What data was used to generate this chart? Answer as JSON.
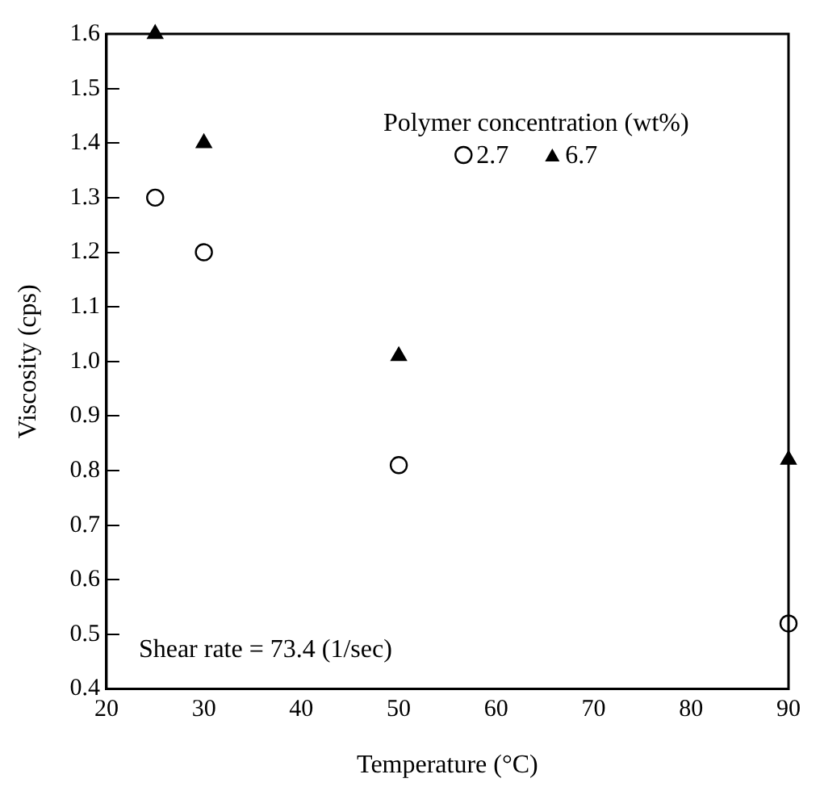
{
  "chart_data": {
    "type": "scatter",
    "xlabel": "Temperature (°C)",
    "ylabel": "Viscosity (cps)",
    "legend_title": "Polymer concentration (wt%)",
    "legend": "top right",
    "grid": false,
    "xlim": [
      20,
      90
    ],
    "xticks": [
      20,
      30,
      40,
      50,
      60,
      70,
      80,
      90
    ],
    "ylim": [
      0.4,
      1.6
    ],
    "yticks": [
      0.4,
      0.5,
      0.6,
      0.7,
      0.8,
      0.9,
      {
        "value": 1,
        "label": "1.0"
      },
      1.1,
      1.2,
      1.3,
      1.4,
      1.5,
      1.6
    ],
    "annotations": [
      "Shear rate = 73.4 (1/sec)"
    ],
    "series": [
      {
        "name": "2.7",
        "color": "#000000",
        "marker": "circle",
        "x": [
          25,
          30,
          50,
          90
        ],
        "values": [
          1.3,
          1.2,
          0.81,
          0.52
        ]
      },
      {
        "name": "6.7",
        "color": "#000000",
        "marker": "triangle",
        "x": [
          25,
          30,
          50,
          90
        ],
        "values": [
          1.6,
          1.4,
          1.01,
          0.82
        ]
      }
    ]
  }
}
